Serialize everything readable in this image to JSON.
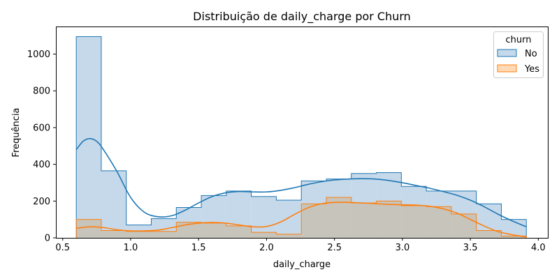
{
  "chart_data": {
    "type": "area",
    "title": "Distribuição de daily_charge por Churn",
    "xlabel": "daily_charge",
    "ylabel": "Frequência",
    "xlim": [
      0.45,
      4.07
    ],
    "ylim": [
      0,
      1150
    ],
    "x_ticks": [
      0.5,
      1.0,
      1.5,
      2.0,
      2.5,
      3.0,
      3.5,
      4.0
    ],
    "x_tick_labels": [
      "0.5",
      "1.0",
      "1.5",
      "2.0",
      "2.5",
      "3.0",
      "3.5",
      "4.0"
    ],
    "y_ticks": [
      0,
      200,
      400,
      600,
      800,
      1000
    ],
    "y_tick_labels": [
      "0",
      "200",
      "400",
      "600",
      "800",
      "1000"
    ],
    "grid": false,
    "legend": {
      "title": "churn",
      "placement": "top-right"
    },
    "bin_edges": [
      0.6,
      0.784,
      0.968,
      1.152,
      1.336,
      1.52,
      1.704,
      1.888,
      2.072,
      2.256,
      2.44,
      2.624,
      2.808,
      2.992,
      3.176,
      3.36,
      3.544,
      3.728,
      3.912
    ],
    "series": [
      {
        "name": "No",
        "color": "#1f77b4",
        "fill": "#c5d9ea",
        "counts": [
          1095,
          365,
          70,
          105,
          165,
          230,
          255,
          225,
          205,
          310,
          320,
          350,
          355,
          280,
          255,
          255,
          185,
          100
        ],
        "kde": {
          "x": [
            0.6,
            0.65,
            0.7,
            0.75,
            0.8,
            0.9,
            1.0,
            1.1,
            1.2,
            1.3,
            1.4,
            1.5,
            1.6,
            1.7,
            1.8,
            1.9,
            2.0,
            2.1,
            2.2,
            2.3,
            2.4,
            2.5,
            2.6,
            2.7,
            2.8,
            2.9,
            3.0,
            3.1,
            3.2,
            3.3,
            3.4,
            3.5,
            3.6,
            3.7,
            3.8,
            3.912
          ],
          "y": [
            480,
            525,
            540,
            525,
            480,
            360,
            220,
            140,
            115,
            120,
            150,
            190,
            225,
            245,
            252,
            250,
            250,
            258,
            272,
            290,
            305,
            315,
            320,
            322,
            320,
            312,
            300,
            285,
            270,
            252,
            232,
            205,
            170,
            130,
            95,
            60
          ]
        }
      },
      {
        "name": "Yes",
        "color": "#ff7f0e",
        "fill": "#ffd8b4",
        "counts": [
          100,
          40,
          35,
          35,
          85,
          80,
          65,
          30,
          20,
          185,
          220,
          190,
          200,
          175,
          170,
          130,
          40,
          10
        ],
        "kde": {
          "x": [
            0.6,
            0.7,
            0.8,
            0.9,
            1.0,
            1.1,
            1.2,
            1.3,
            1.4,
            1.5,
            1.6,
            1.7,
            1.8,
            1.9,
            2.0,
            2.1,
            2.2,
            2.3,
            2.4,
            2.5,
            2.6,
            2.7,
            2.8,
            2.9,
            3.0,
            3.1,
            3.2,
            3.3,
            3.4,
            3.5,
            3.6,
            3.7,
            3.8,
            3.912
          ],
          "y": [
            52,
            60,
            56,
            44,
            38,
            38,
            42,
            55,
            70,
            80,
            84,
            80,
            70,
            60,
            62,
            85,
            125,
            162,
            185,
            193,
            193,
            190,
            186,
            182,
            180,
            178,
            172,
            158,
            135,
            100,
            65,
            35,
            18,
            5
          ]
        }
      }
    ],
    "overlap_fill": "#c7c4bb"
  }
}
